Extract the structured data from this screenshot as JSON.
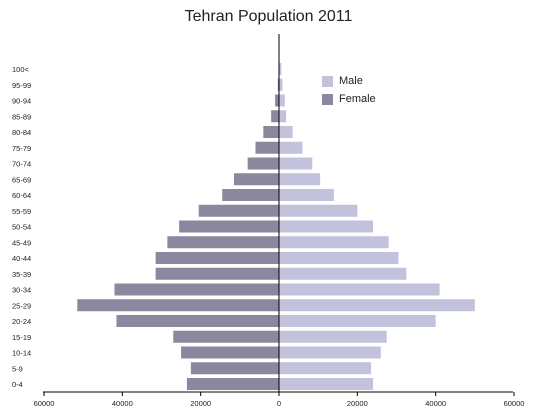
{
  "chart_data": {
    "type": "bar",
    "orientation": "horizontal-pyramid",
    "title": "Tehran Population 2011",
    "categories": [
      "0-4",
      "5-9",
      "10-14",
      "15-19",
      "20-24",
      "25-29",
      "30-34",
      "35-39",
      "40-44",
      "45-49",
      "50-54",
      "55-59",
      "60-64",
      "65-69",
      "70-74",
      "75-79",
      "80-84",
      "85-89",
      "90-94",
      "95-99",
      "100<"
    ],
    "series": [
      {
        "name": "Male",
        "side": "right",
        "color": "#c3c2dc",
        "values": [
          24000,
          23500,
          26000,
          27500,
          40000,
          50000,
          41000,
          32500,
          30500,
          28000,
          24000,
          20000,
          14000,
          10500,
          8500,
          6000,
          3500,
          1800,
          1500,
          900,
          600
        ]
      },
      {
        "name": "Female",
        "side": "left",
        "color": "#8a879f",
        "values": [
          23500,
          22500,
          25000,
          27000,
          41500,
          51500,
          42000,
          31500,
          31500,
          28500,
          25500,
          20500,
          14500,
          11500,
          8000,
          6000,
          4000,
          2000,
          1000,
          300,
          100
        ]
      }
    ],
    "xlim": [
      -60000,
      60000
    ],
    "xticks": [
      -60000,
      -40000,
      -20000,
      0,
      20000,
      40000,
      60000
    ],
    "xtick_labels": [
      "60000",
      "40000",
      "20000",
      "0",
      "20000",
      "40000",
      "60000"
    ],
    "legend_position": "top-right",
    "grid": false
  }
}
